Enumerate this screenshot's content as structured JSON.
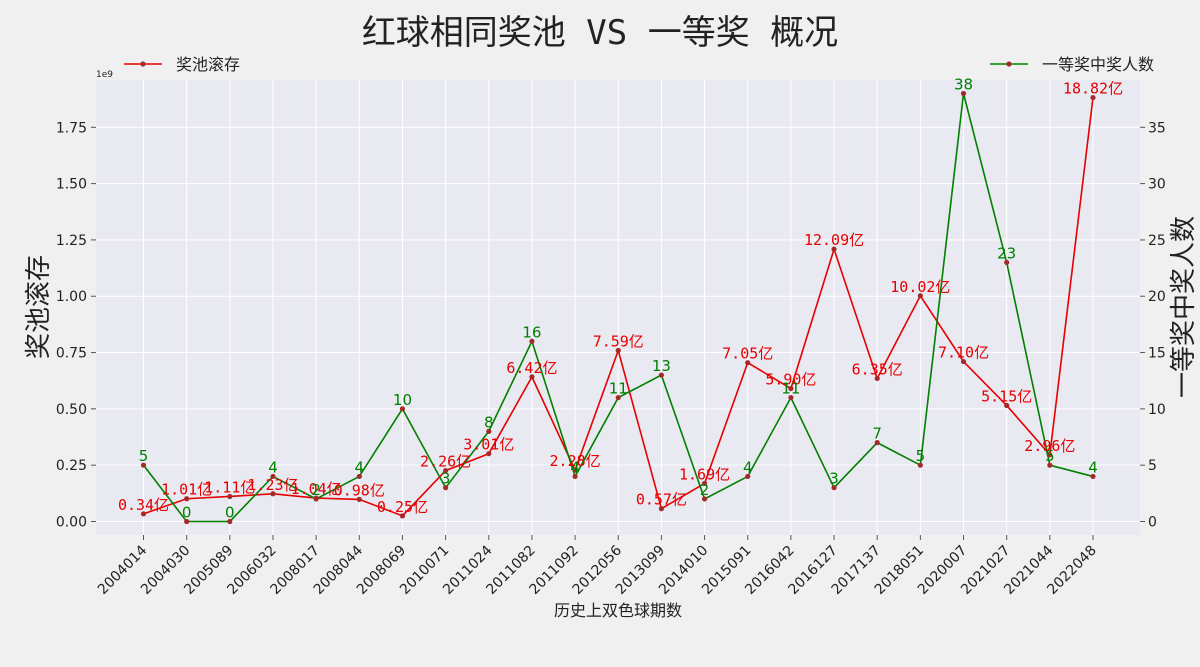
{
  "chart_data": {
    "type": "line",
    "title": "红球相同奖池 VS 一等奖 概况",
    "xlabel": "历史上双色球期数",
    "ylabel_left": "奖池滚存",
    "ylabel_right": "一等奖中奖人数",
    "left_axis_exponent": "1e9",
    "categories": [
      "2004014",
      "2004030",
      "2005089",
      "2006032",
      "2008017",
      "2008044",
      "2008069",
      "2010071",
      "2011024",
      "2011082",
      "2011092",
      "2012056",
      "2013099",
      "2014010",
      "2015091",
      "2016042",
      "2016127",
      "2017137",
      "2018051",
      "2020007",
      "2021027",
      "2021044",
      "2022048"
    ],
    "ylim_left": [
      -0.06,
      1.96
    ],
    "yticks_left": [
      "0.00",
      "0.25",
      "0.50",
      "0.75",
      "1.00",
      "1.25",
      "1.50",
      "1.75"
    ],
    "ylim_right": [
      -1.2,
      39.2
    ],
    "yticks_right": [
      "0",
      "5",
      "10",
      "15",
      "20",
      "25",
      "30",
      "35"
    ],
    "grid": true,
    "series": [
      {
        "name": "奖池滚存",
        "axis": "left",
        "color": "#e60000",
        "values": [
          0.034,
          0.101,
          0.111,
          0.123,
          0.104,
          0.098,
          0.025,
          0.226,
          0.301,
          0.642,
          0.228,
          0.759,
          0.057,
          0.169,
          0.705,
          0.59,
          1.209,
          0.635,
          1.002,
          0.71,
          0.515,
          0.296,
          1.882
        ],
        "labels": [
          "0.34亿",
          "1.01亿",
          "1.11亿",
          "1.23亿",
          "1.04亿",
          "0.98亿",
          "0.25亿",
          "2.26亿",
          "3.01亿",
          "6.42亿",
          "2.28亿",
          "7.59亿",
          "0.57亿",
          "1.69亿",
          "7.05亿",
          "5.90亿",
          "12.09亿",
          "6.35亿",
          "10.02亿",
          "7.10亿",
          "5.15亿",
          "2.96亿",
          "18.82亿"
        ]
      },
      {
        "name": "一等奖中奖人数",
        "axis": "right",
        "color": "#008000",
        "values": [
          5,
          0,
          0,
          4,
          2,
          4,
          10,
          3,
          8,
          16,
          4,
          11,
          13,
          2,
          4,
          11,
          3,
          7,
          5,
          38,
          23,
          5,
          4
        ],
        "labels": [
          "5",
          "0",
          "0",
          "4",
          "2",
          "4",
          "10",
          "3",
          "8",
          "16",
          "4",
          "11",
          "13",
          "2",
          "4",
          "11",
          "3",
          "7",
          "5",
          "38",
          "23",
          "5",
          "4"
        ]
      }
    ],
    "legend": {
      "left_series": "top-left",
      "right_series": "top-right"
    }
  }
}
